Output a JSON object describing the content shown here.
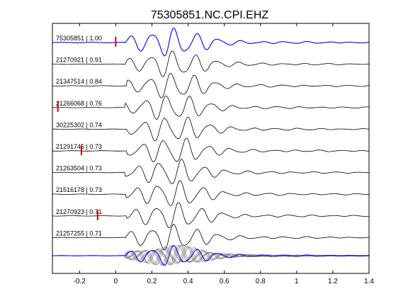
{
  "chart_data": {
    "type": "line",
    "title": "75305851.NC.CPI.EHZ",
    "xlabel": "",
    "ylabel": "",
    "xlim": [
      -0.35,
      1.4
    ],
    "xticks": [
      -0.2,
      0,
      0.2,
      0.4,
      0.6,
      0.8,
      1,
      1.2,
      1.4
    ],
    "xtick_labels": [
      "-0.2",
      "0",
      "0.2",
      "0.4",
      "0.6",
      "0.8",
      "1",
      "1.2",
      "1.4"
    ],
    "grid": false,
    "colors": {
      "reference": "#0000ff",
      "trace": "#000000",
      "stack": "#808080",
      "pick": "#cc0000"
    },
    "traces": [
      {
        "label": "75305851 | 1.00",
        "pick_time": 0.0,
        "color": "#0000ff"
      },
      {
        "label": "21270921 | 0.91",
        "pick_time": null
      },
      {
        "label": "21347514 | 0.84",
        "pick_time": null
      },
      {
        "label": "21266068 | 0.76",
        "pick_time": -0.32
      },
      {
        "label": "30225302 | 0.74",
        "pick_time": null
      },
      {
        "label": "21291745 | 0.73",
        "pick_time": -0.19
      },
      {
        "label": "21263504 | 0.73",
        "pick_time": null
      },
      {
        "label": "21516178 | 0.73",
        "pick_time": null
      },
      {
        "label": "21270923 | 0.71",
        "pick_time": -0.1
      },
      {
        "label": "21257255 | 0.71",
        "pick_time": null
      }
    ],
    "stack": {
      "traces_overlaid": 10
    }
  }
}
